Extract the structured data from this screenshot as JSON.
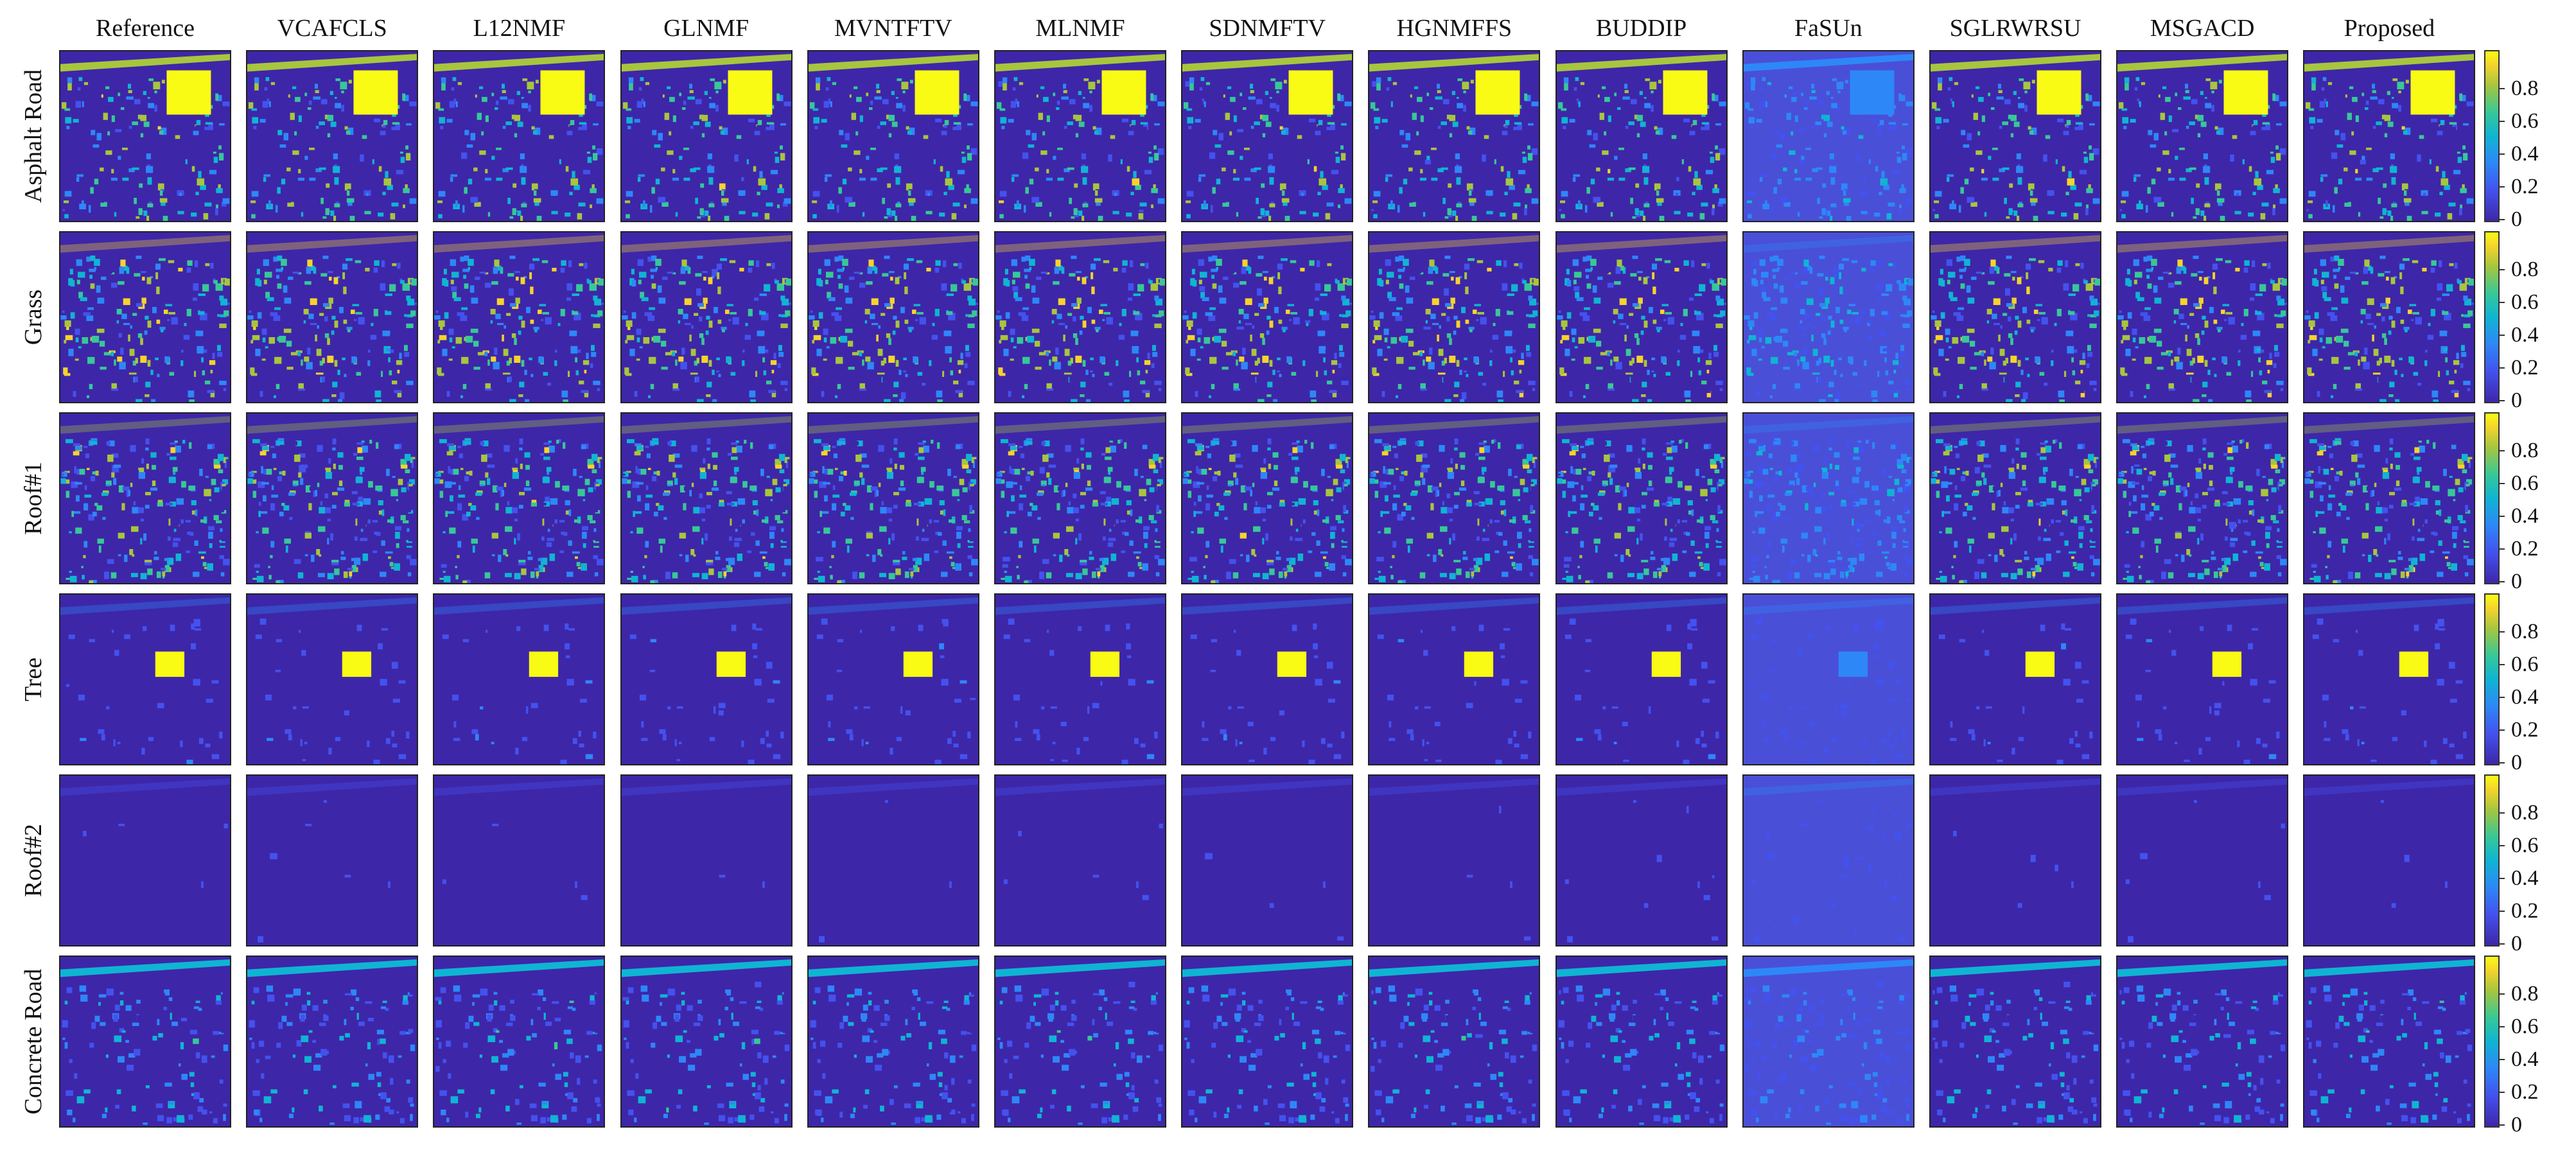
{
  "columns": [
    "Reference",
    "VCAFCLS",
    "L12NMF",
    "GLNMF",
    "MVNTFTV",
    "MLNMF",
    "SDNMFTV",
    "HGNMFFS",
    "BUDDIP",
    "FaSUn",
    "SGLRWRSU",
    "MSGACD",
    "Proposed"
  ],
  "rows": [
    "Asphalt Road",
    "Grass",
    "Roof#1",
    "Tree",
    "Roof#2",
    "Concrete Road"
  ],
  "colorbar": {
    "ticks": [
      "0",
      "0.2",
      "0.4",
      "0.6",
      "0.8"
    ],
    "colormap": "parula",
    "colors": [
      "#3e26a8",
      "#4352ee",
      "#2e87f7",
      "#10b4d3",
      "#37c897",
      "#a7c63d",
      "#f5d32d",
      "#f9fb14"
    ]
  }
}
